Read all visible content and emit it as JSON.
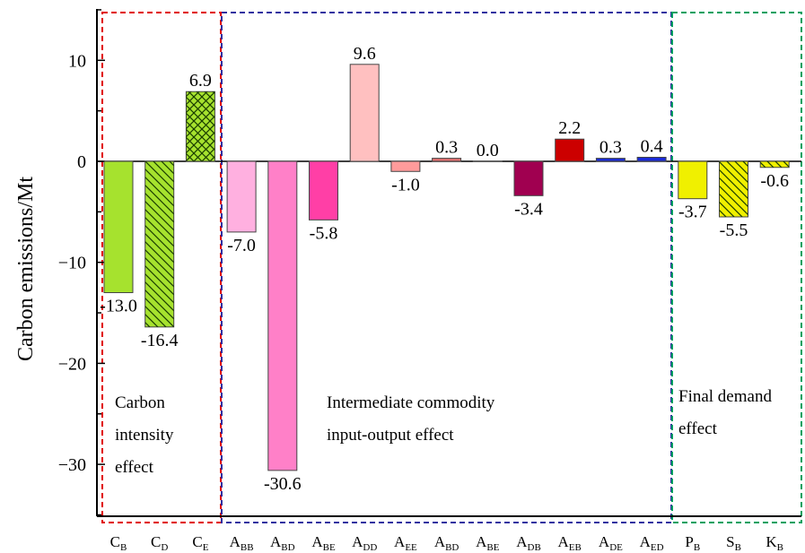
{
  "chart_data": {
    "type": "bar",
    "ylabel": "Carbon emissions/Mt",
    "xlabel": "",
    "title": "",
    "ylim": [
      -35,
      15
    ],
    "yticks": [
      10,
      0,
      -10,
      -20,
      -30
    ],
    "grid": false,
    "categories": [
      {
        "base": "C",
        "sub": "B"
      },
      {
        "base": "C",
        "sub": "D"
      },
      {
        "base": "C",
        "sub": "E"
      },
      {
        "base": "A",
        "sub": "BB"
      },
      {
        "base": "A",
        "sub": "BD"
      },
      {
        "base": "A",
        "sub": "BE"
      },
      {
        "base": "A",
        "sub": "DD"
      },
      {
        "base": "A",
        "sub": "EE"
      },
      {
        "base": "A",
        "sub": "BD"
      },
      {
        "base": "A",
        "sub": "BE"
      },
      {
        "base": "A",
        "sub": "DB"
      },
      {
        "base": "A",
        "sub": "EB"
      },
      {
        "base": "A",
        "sub": "DE"
      },
      {
        "base": "A",
        "sub": "ED"
      },
      {
        "base": "P",
        "sub": "B"
      },
      {
        "base": "S",
        "sub": "B"
      },
      {
        "base": "K",
        "sub": "B"
      }
    ],
    "values": [
      -13.0,
      -16.4,
      6.9,
      -7.0,
      -30.6,
      -5.8,
      9.6,
      -1.0,
      0.3,
      0.0,
      -3.4,
      2.2,
      0.3,
      0.4,
      -3.7,
      -5.5,
      -0.6
    ],
    "value_labels": [
      "-13.0",
      "-16.4",
      "6.9",
      "-7.0",
      "-30.6",
      "-5.8",
      "9.6",
      "-1.0",
      "0.3",
      "0.0",
      "-3.4",
      "2.2",
      "0.3",
      "0.4",
      "-3.7",
      "-5.5",
      "-0.6"
    ],
    "colors": [
      "#a6e22e",
      "#a6e22e",
      "#a6e22e",
      "#ffb0e0",
      "#ff80c8",
      "#ff3fa6",
      "#ffc0c0",
      "#ff9b9b",
      "#e07070",
      "#e07070",
      "#a00050",
      "#cc0000",
      "#1a2ad8",
      "#1a2ad8",
      "#f0f000",
      "#f0f000",
      "#f0f000"
    ],
    "patterns": [
      "none",
      "diag",
      "cross",
      "none",
      "none",
      "none",
      "none",
      "none",
      "none",
      "none",
      "none",
      "none",
      "none",
      "none",
      "none",
      "diag",
      "diag"
    ],
    "groups": [
      {
        "label_lines": [
          "Carbon",
          "intensity",
          "effect"
        ],
        "color": "#e00000",
        "from": 0,
        "to": 2
      },
      {
        "label_lines": [
          "Intermediate commodity",
          "input-output effect"
        ],
        "color": "#3030a0",
        "from": 3,
        "to": 13
      },
      {
        "label_lines": [
          "Final demand",
          "effect"
        ],
        "color": "#00a060",
        "from": 14,
        "to": 16
      }
    ]
  }
}
